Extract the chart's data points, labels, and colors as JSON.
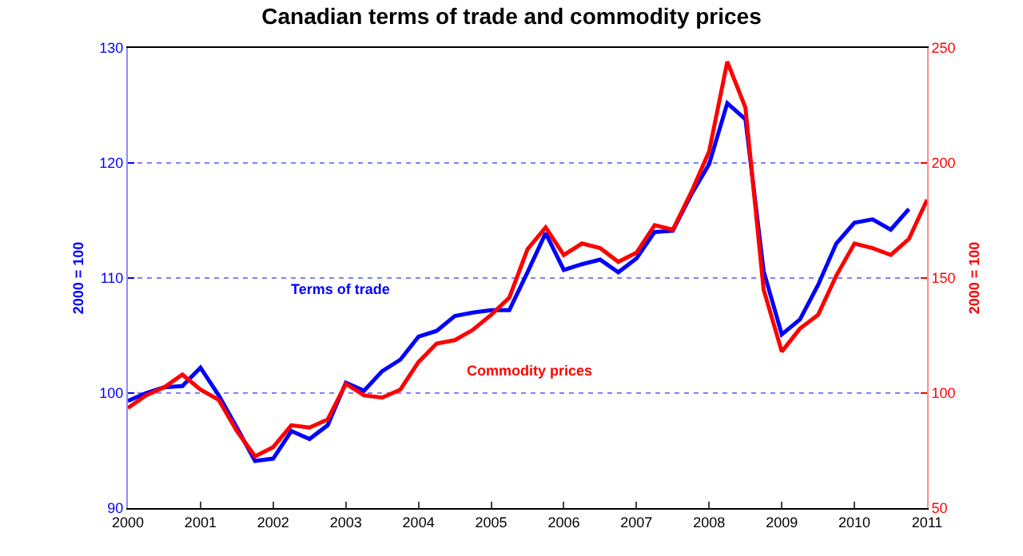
{
  "chart_data": {
    "type": "line",
    "title": "Canadian terms of trade and commodity prices",
    "ylabel": "2000 = 100",
    "y2label": "2000 = 100",
    "x": [
      2000,
      2000.25,
      2000.5,
      2000.75,
      2001,
      2001.25,
      2001.5,
      2001.75,
      2002,
      2002.25,
      2002.5,
      2002.75,
      2003,
      2003.25,
      2003.5,
      2003.75,
      2004,
      2004.25,
      2004.5,
      2004.75,
      2005,
      2005.25,
      2005.5,
      2005.75,
      2006,
      2006.25,
      2006.5,
      2006.75,
      2007,
      2007.25,
      2007.5,
      2007.75,
      2008,
      2008.25,
      2008.5,
      2008.75,
      2009,
      2009.25,
      2009.5,
      2009.75,
      2010,
      2010.25,
      2010.5,
      2010.75,
      2011
    ],
    "series": [
      {
        "name": "Terms of trade",
        "color": "#0000ff",
        "axis": "y",
        "values": [
          99.3,
          100.0,
          100.5,
          100.6,
          102.2,
          99.8,
          97.0,
          94.1,
          94.3,
          96.7,
          96.0,
          97.2,
          100.9,
          100.2,
          101.9,
          102.9,
          104.9,
          105.4,
          106.7,
          107.0,
          107.2,
          107.2,
          110.5,
          113.9,
          110.7,
          111.2,
          111.6,
          110.5,
          111.7,
          114.0,
          114.1,
          117.2,
          119.9,
          125.2,
          123.8,
          110.6,
          105.1,
          106.4,
          109.4,
          113.0,
          114.8,
          115.1,
          114.2,
          116.0,
          null
        ]
      },
      {
        "name": "Commodity prices",
        "color": "#ff0000",
        "axis": "y2",
        "values": [
          93.5,
          99,
          102.5,
          108,
          101.5,
          97,
          83.5,
          72.5,
          76.5,
          86,
          85,
          88.5,
          104,
          99,
          98,
          101.5,
          113.5,
          121.5,
          123,
          127.5,
          134,
          141.5,
          162.5,
          172,
          160,
          165,
          163,
          157,
          161,
          173,
          171,
          187,
          205,
          244,
          224,
          145,
          118,
          128,
          134,
          151,
          165,
          163,
          160,
          167,
          184
        ]
      }
    ],
    "xlim": [
      2000,
      2011
    ],
    "xticks": [
      2000,
      2001,
      2002,
      2003,
      2004,
      2005,
      2006,
      2007,
      2008,
      2009,
      2010,
      2011
    ],
    "ylim": [
      90,
      130
    ],
    "yticks": [
      90,
      100,
      110,
      120,
      130
    ],
    "y2lim": [
      50,
      250
    ],
    "y2ticks": [
      50,
      100,
      150,
      200,
      250
    ],
    "grid": "y",
    "legend": false,
    "line_style": "solid",
    "marker": "none"
  }
}
